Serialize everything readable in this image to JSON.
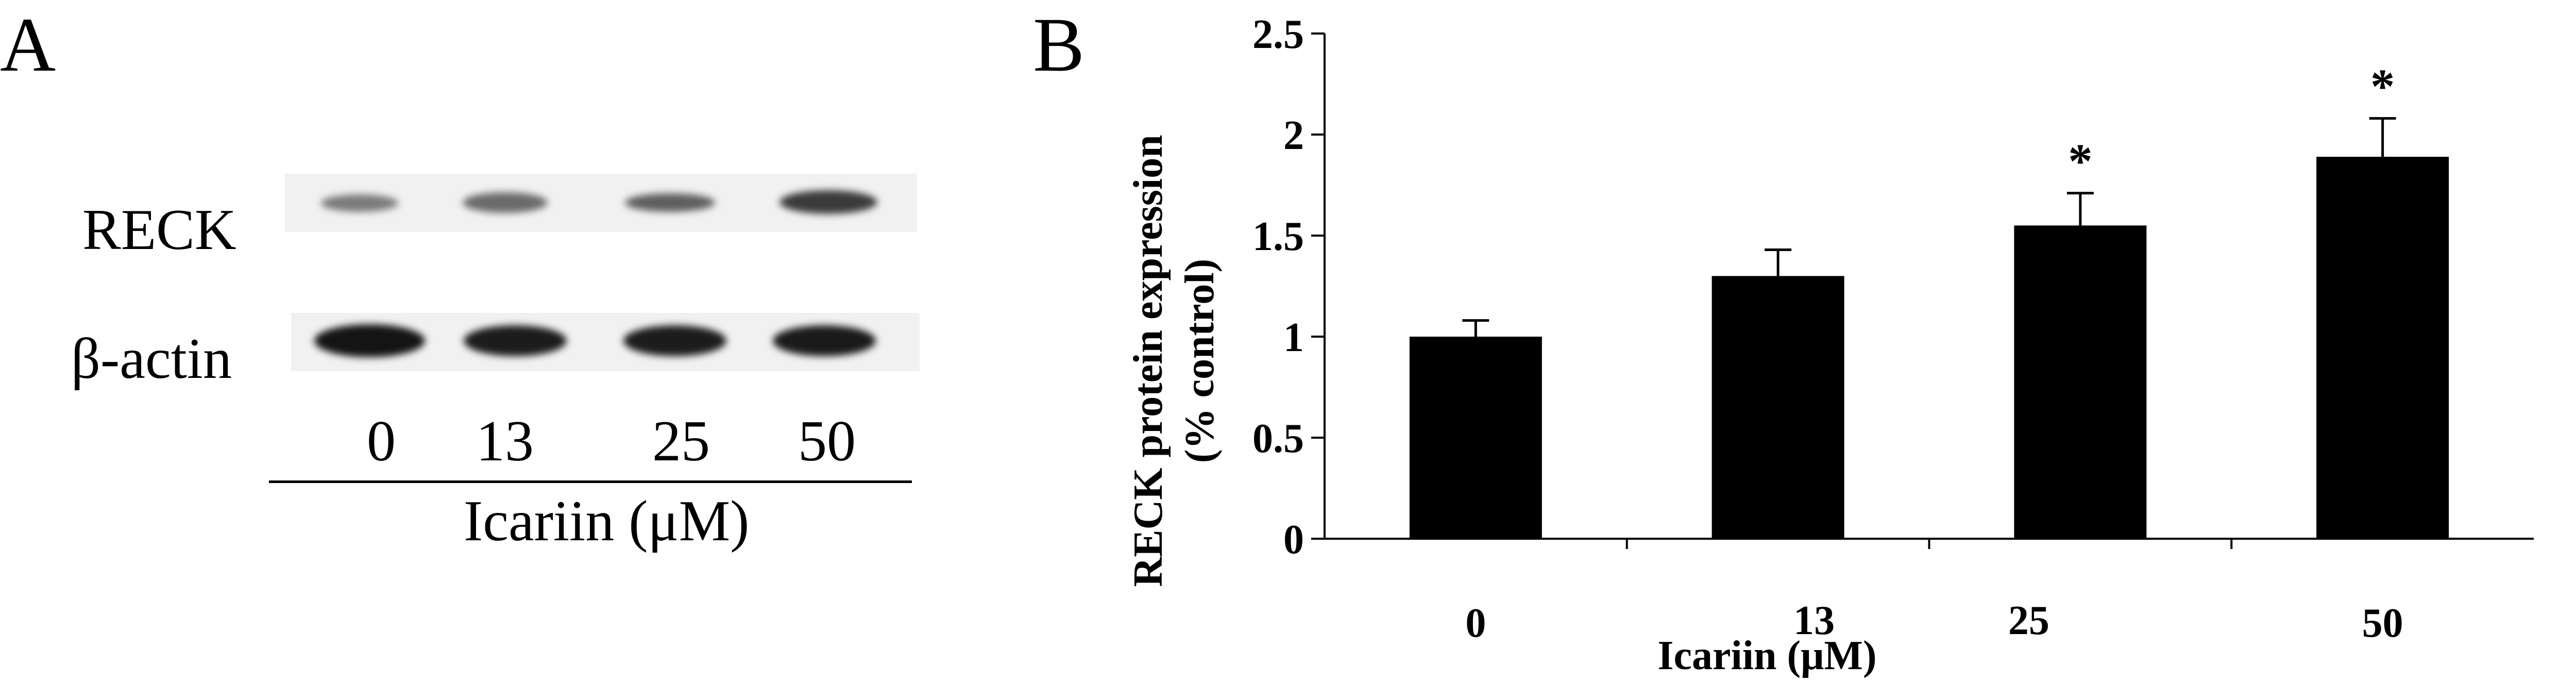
{
  "panel_a": {
    "letter": "A",
    "row_labels": [
      "RECK",
      "β-actin"
    ],
    "lanes": [
      "0",
      "13",
      "25",
      "50"
    ],
    "treatment_label": "Icariin (μM)"
  },
  "panel_b": {
    "letter": "B"
  },
  "chart_data": {
    "type": "bar",
    "categories": [
      "0",
      "13",
      "25",
      "50"
    ],
    "values": [
      1.0,
      1.3,
      1.55,
      1.89
    ],
    "errors": [
      0.08,
      0.13,
      0.16,
      0.19
    ],
    "significance": [
      "",
      "",
      "*",
      "*"
    ],
    "title": "",
    "xlabel": "Icariin (μM)",
    "ylabel": [
      "RECK protein expression",
      "(% control)"
    ],
    "ylim": [
      0,
      2.5
    ],
    "yticks": [
      "0",
      "0.5",
      "1",
      "1.5",
      "2",
      "2.5"
    ],
    "ytick_values": [
      0,
      0.5,
      1,
      1.5,
      2,
      2.5
    ],
    "bar_color": "#000000",
    "grid": false,
    "legend": "none"
  }
}
